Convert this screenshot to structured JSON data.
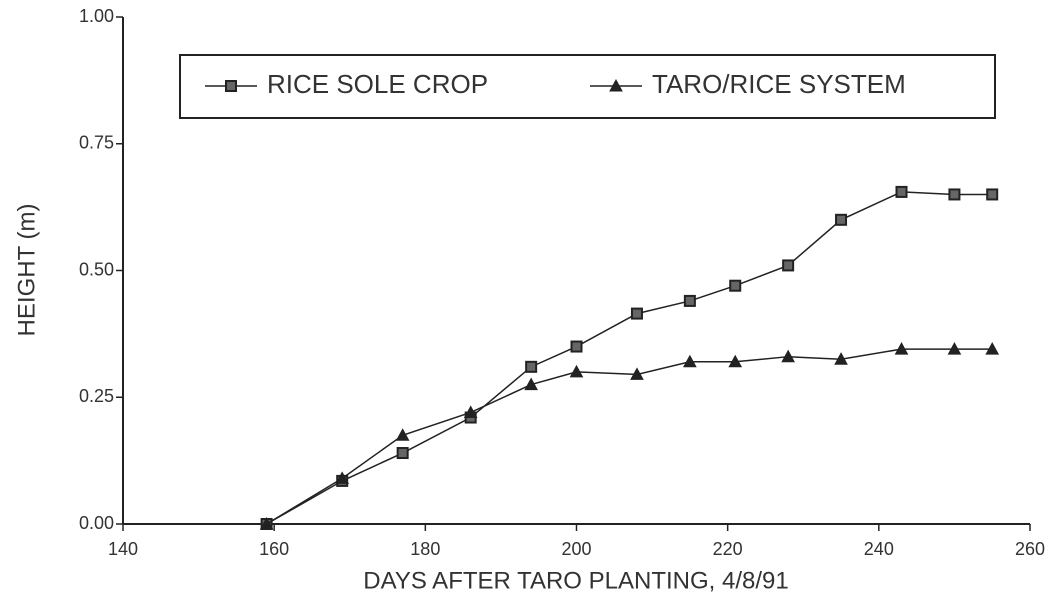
{
  "chart_data": {
    "type": "line",
    "xlabel": "DAYS AFTER TARO PLANTING, 4/8/91",
    "ylabel": "HEIGHT (m)",
    "x": [
      159,
      169,
      177,
      186,
      194,
      200,
      208,
      215,
      221,
      228,
      235,
      243,
      250,
      255
    ],
    "series": [
      {
        "name": "RICE SOLE CROP",
        "color": "#222222",
        "marker": "square",
        "values": [
          0,
          0.085,
          0.14,
          0.21,
          0.31,
          0.35,
          0.415,
          0.44,
          0.47,
          0.51,
          0.6,
          0.655,
          0.65,
          0.65
        ]
      },
      {
        "name": "TARO/RICE SYSTEM",
        "color": "#222222",
        "marker": "triangle",
        "values": [
          0,
          0.09,
          0.175,
          0.22,
          0.275,
          0.3,
          0.295,
          0.32,
          0.32,
          0.33,
          0.325,
          0.345,
          0.345,
          0.345
        ]
      }
    ],
    "xlim": [
      140,
      260
    ],
    "xticks": [
      140,
      160,
      180,
      200,
      220,
      240,
      260
    ],
    "ylim": [
      0,
      1
    ],
    "yticks": [
      {
        "value": 0,
        "label": "0.00"
      },
      {
        "value": 0.25,
        "label": "0.25"
      },
      {
        "value": 0.5,
        "label": "0.50"
      },
      {
        "value": 0.75,
        "label": "0.75"
      },
      {
        "value": 1,
        "label": "1.00"
      }
    ],
    "legend": "top"
  }
}
